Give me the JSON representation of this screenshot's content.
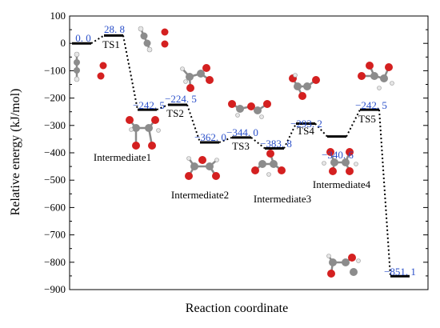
{
  "chart_data": {
    "type": "line",
    "xlabel": "Reaction coordinate",
    "ylabel": "Relative energy (kJ/mol)",
    "ylim": [
      -900,
      100
    ],
    "yticks": [
      100,
      0,
      -100,
      -200,
      -300,
      -400,
      -500,
      -600,
      -700,
      -800,
      -900
    ],
    "states": [
      {
        "index": 0,
        "value": 0.0,
        "value_label": "0. 0",
        "name": ""
      },
      {
        "index": 1,
        "value": 28.8,
        "value_label": "28. 8",
        "name": "TS1"
      },
      {
        "index": 2,
        "value": -242.5,
        "value_label": "−242. 5",
        "name": "Intermediate1"
      },
      {
        "index": 3,
        "value": -224.5,
        "value_label": "−224. 5",
        "name": "TS2"
      },
      {
        "index": 4,
        "value": -362.0,
        "value_label": "−362. 0",
        "name": "Intermediate2"
      },
      {
        "index": 5,
        "value": -344.0,
        "value_label": "−344. 0",
        "name": "TS3"
      },
      {
        "index": 6,
        "value": -383.8,
        "value_label": "−383. 8",
        "name": "Intermediate3"
      },
      {
        "index": 7,
        "value": -293.2,
        "value_label": "−293. 2",
        "name": "TS4"
      },
      {
        "index": 8,
        "value": -340.6,
        "value_label": "−340. 6",
        "name": "Intermediate4"
      },
      {
        "index": 9,
        "value": -242.5,
        "value_label": "−242. 5",
        "name": "TS5"
      },
      {
        "index": 10,
        "value": -851.1,
        "value_label": "−851. 1",
        "name": ""
      }
    ],
    "colors": {
      "value_labels": "#2a4fc9",
      "carbon": "#8c8c8c",
      "oxygen": "#d42020",
      "hydrogen": "#e6e6e6"
    }
  }
}
